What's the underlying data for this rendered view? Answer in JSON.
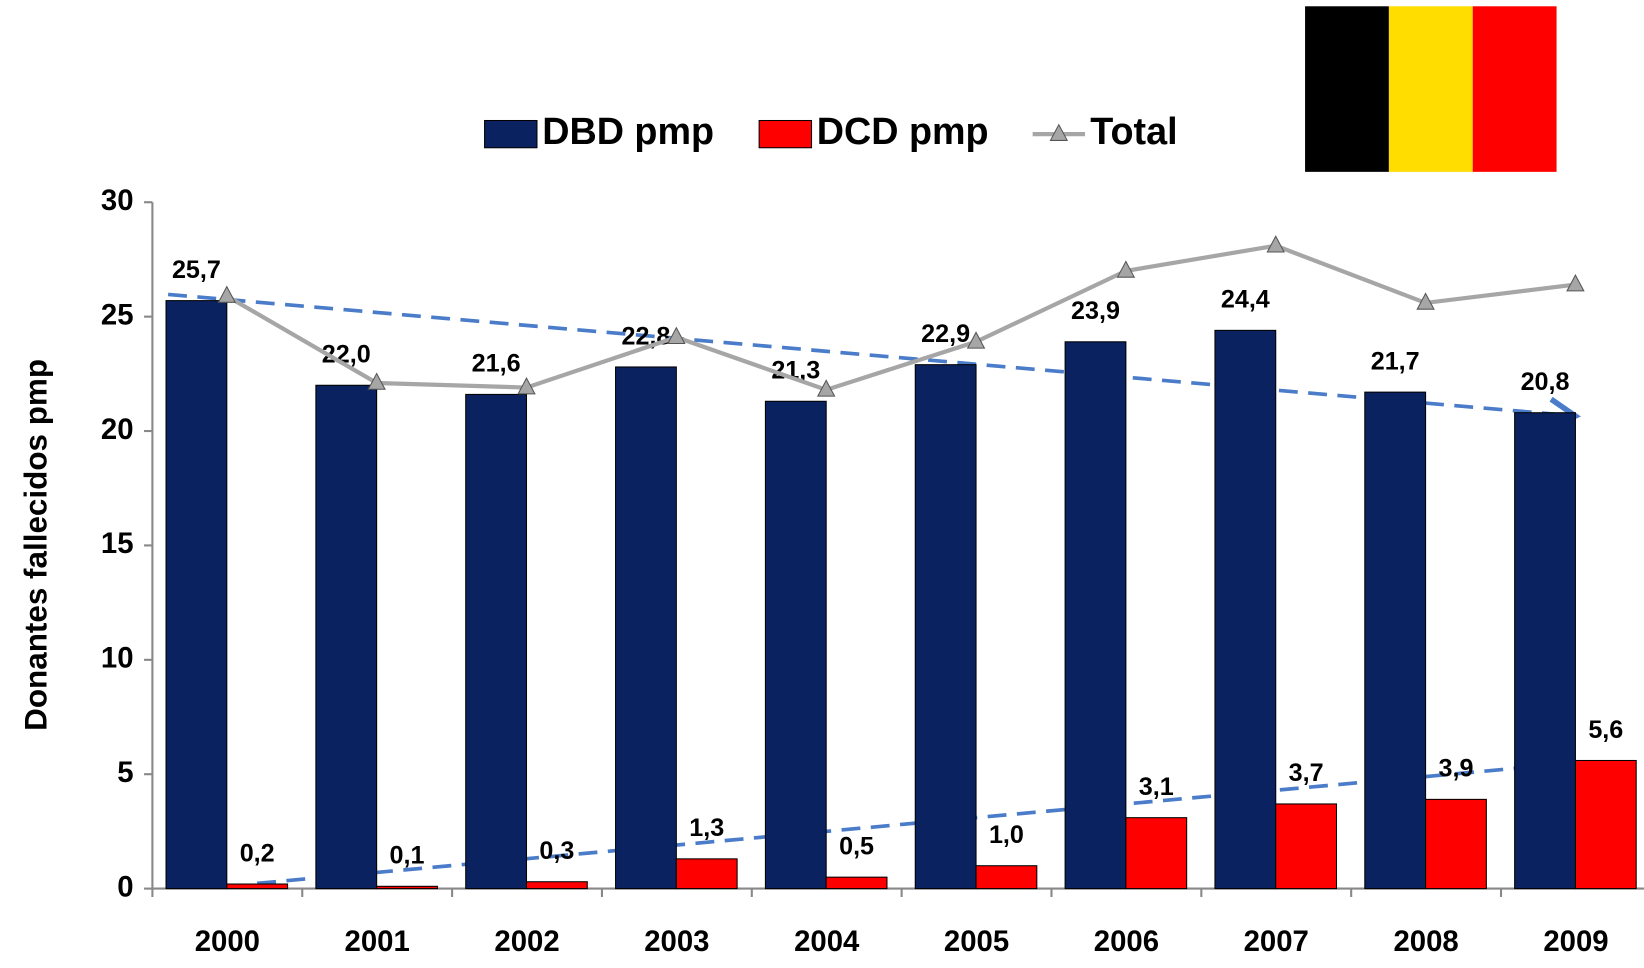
{
  "chart_data": {
    "type": "bar",
    "y_label": "Donantes fallecidos pmp",
    "categories": [
      "2000",
      "2001",
      "2002",
      "2003",
      "2004",
      "2005",
      "2006",
      "2007",
      "2008",
      "2009"
    ],
    "series": [
      {
        "name": "DBD pmp",
        "color": "#0b2260",
        "values": [
          25.7,
          22.0,
          21.6,
          22.8,
          21.3,
          22.9,
          23.9,
          24.4,
          21.7,
          20.8
        ],
        "value_labels": [
          "25,7",
          "22,0",
          "21,6",
          "22,8",
          "21,3",
          "22,9",
          "23,9",
          "24,4",
          "21,7",
          "20,8"
        ]
      },
      {
        "name": "DCD pmp",
        "color": "#ff0000",
        "values": [
          0.2,
          0.1,
          0.3,
          1.3,
          0.5,
          1.0,
          3.1,
          3.7,
          3.9,
          5.6
        ],
        "value_labels": [
          "0,2",
          "0,1",
          "0,3",
          "1,3",
          "0,5",
          "1,0",
          "3,1",
          "3,7",
          "3,9",
          "5,6"
        ]
      },
      {
        "name": "Total",
        "type": "line",
        "color": "#a6a6a6",
        "values": [
          25.9,
          22.1,
          21.9,
          24.1,
          21.8,
          23.9,
          27.0,
          28.1,
          25.6,
          26.4
        ]
      }
    ],
    "ylim": [
      0,
      30
    ],
    "yticks": [
      0,
      5,
      10,
      15,
      20,
      25,
      30
    ],
    "grid": false
  }
}
